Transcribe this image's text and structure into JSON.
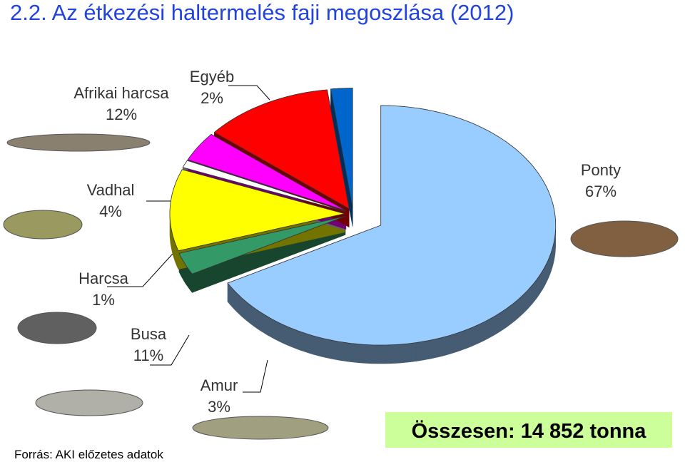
{
  "chart_data": {
    "type": "pie",
    "title": "2.2. Az étkezési haltermelés faji megoszlása (2012)",
    "categories": [
      "Ponty",
      "Amur",
      "Busa",
      "Harcsa",
      "Vadhal",
      "Afrikai harcsa",
      "Egyéb"
    ],
    "values": [
      67,
      3,
      11,
      1,
      4,
      12,
      2
    ],
    "value_labels": [
      "67%",
      "3%",
      "11%",
      "1%",
      "4%",
      "12%",
      "2%"
    ],
    "colors": [
      "#99ccff",
      "#339966",
      "#ffff00",
      "#ffffff",
      "#ff00ff",
      "#ff0000",
      "#0066cc"
    ],
    "total_label": "Összesen: 14 852 tonna",
    "source": "Forrás: AKI előzetes adatok"
  }
}
